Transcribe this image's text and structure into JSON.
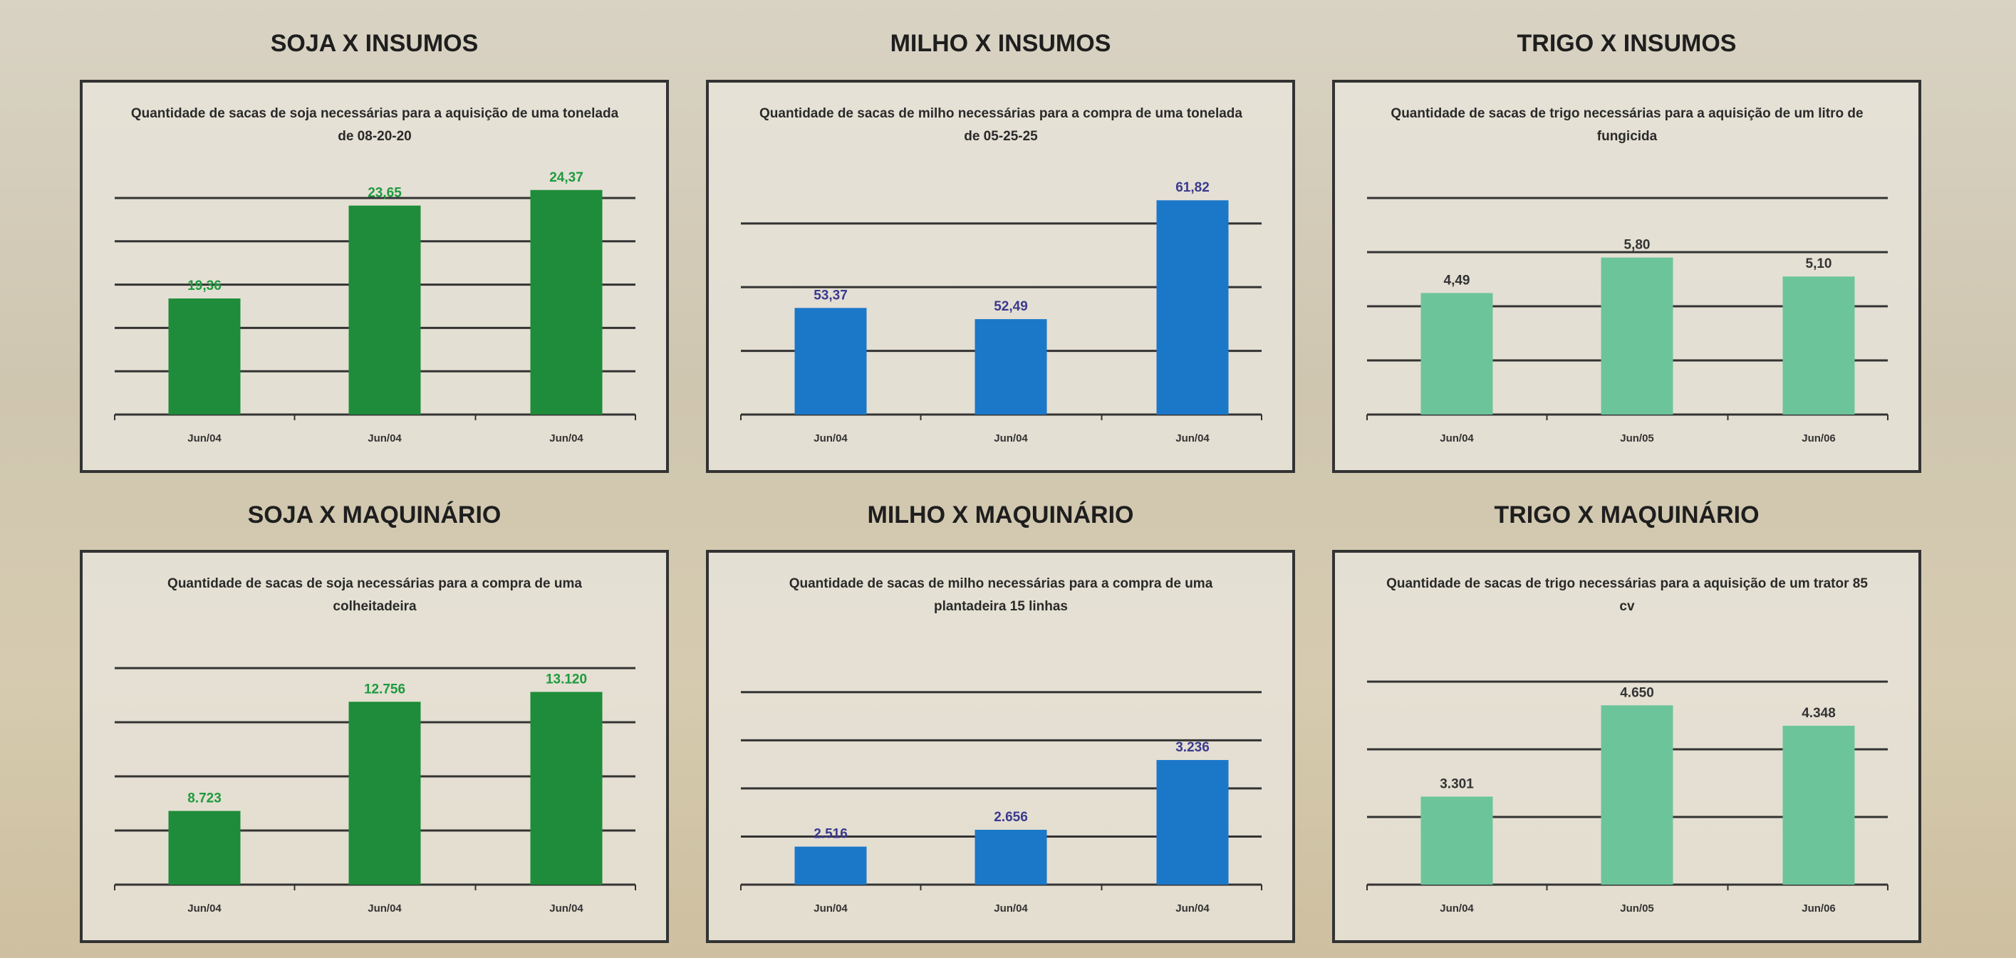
{
  "chart_data": [
    {
      "type": "bar",
      "title": "SOJA X INSUMOS",
      "subtitle": "Quantidade de sacas de soja necessárias para a aquisição de uma tonelada de 08-20-20",
      "categories": [
        "Jun/04",
        "Jun/04",
        "Jun/04"
      ],
      "values": [
        19.36,
        23.65,
        24.37
      ],
      "value_labels": [
        "19,36",
        "23,65",
        "24,37"
      ],
      "color": "#1e8c3a",
      "label_color": "#1e9a3e",
      "ylim": [
        14,
        24
      ],
      "yticks": [
        14,
        16,
        18,
        20,
        22,
        24
      ],
      "grid": true
    },
    {
      "type": "bar",
      "title": "MILHO X INSUMOS",
      "subtitle": "Quantidade de sacas de milho necessárias para a compra de uma tonelada de 05-25-25",
      "categories": [
        "Jun/04",
        "Jun/04",
        "Jun/04"
      ],
      "values": [
        53.37,
        52.49,
        61.82
      ],
      "value_labels": [
        "53,37",
        "52,49",
        "61,82"
      ],
      "color": "#1b78c9",
      "label_color": "#3b3a8f",
      "ylim": [
        45,
        62
      ],
      "yticks": [
        45,
        50,
        55,
        60
      ],
      "grid": true
    },
    {
      "type": "bar",
      "title": "TRIGO X INSUMOS",
      "subtitle": "Quantidade de sacas de trigo necessárias para a aquisição de um litro de fungicida",
      "categories": [
        "Jun/04",
        "Jun/05",
        "Jun/06"
      ],
      "values": [
        4.49,
        5.8,
        5.1
      ],
      "value_labels": [
        "4,49",
        "5,80",
        "5,10"
      ],
      "color": "#6cc59a",
      "label_color": "#333333",
      "ylim": [
        0,
        8
      ],
      "yticks": [
        0,
        2,
        4,
        6,
        8
      ],
      "grid": true
    },
    {
      "type": "bar",
      "title": "SOJA X MAQUINÁRIO",
      "subtitle": "Quantidade de sacas de soja necessárias para a compra de uma colheitadeira",
      "categories": [
        "Jun/04",
        "Jun/04",
        "Jun/04"
      ],
      "values": [
        8723,
        12756,
        13120
      ],
      "value_labels": [
        "8.723",
        "12.756",
        "13.120"
      ],
      "color": "#1e8c3a",
      "label_color": "#1e9a3e",
      "ylim": [
        6000,
        14000
      ],
      "yticks": [
        6000,
        8000,
        10000,
        12000,
        14000
      ],
      "grid": true
    },
    {
      "type": "bar",
      "title": "MILHO X MAQUINÁRIO",
      "subtitle": "Quantidade de sacas de milho necessárias para a compra de uma plantadeira 15 linhas",
      "categories": [
        "Jun/04",
        "Jun/04",
        "Jun/04"
      ],
      "values": [
        2516,
        2656,
        3236
      ],
      "value_labels": [
        "2.516",
        "2.656",
        "3.236"
      ],
      "color": "#1b78c9",
      "label_color": "#3b3a8f",
      "ylim": [
        2200,
        4000
      ],
      "yticks": [
        2200,
        2600,
        3000,
        3400,
        3800
      ],
      "grid": true
    },
    {
      "type": "bar",
      "title": "TRIGO X MAQUINÁRIO",
      "subtitle": "Quantidade de sacas de trigo necessárias para a aquisição de um trator 85 cv",
      "categories": [
        "Jun/04",
        "Jun/05",
        "Jun/06"
      ],
      "values": [
        3301,
        4650,
        4348
      ],
      "value_labels": [
        "3.301",
        "4.650",
        "4.348"
      ],
      "color": "#6cc59a",
      "label_color": "#333333",
      "ylim": [
        2000,
        5200
      ],
      "yticks": [
        2000,
        3000,
        4000,
        5000
      ],
      "grid": true
    }
  ]
}
